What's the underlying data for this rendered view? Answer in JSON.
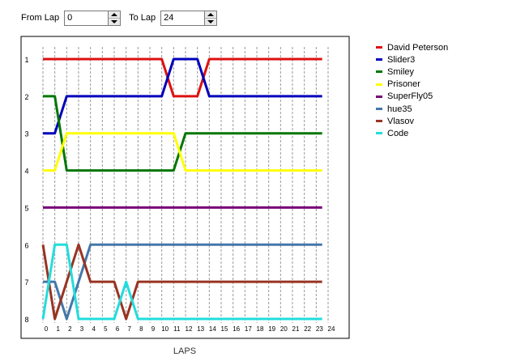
{
  "controls": {
    "from_label": "From Lap",
    "from_value": "0",
    "to_label": "To Lap",
    "to_value": "24"
  },
  "chart_data": {
    "type": "line",
    "title": "",
    "xlabel": "LAPS",
    "ylabel": "",
    "x_ticks": [
      0,
      1,
      2,
      3,
      4,
      5,
      6,
      7,
      8,
      9,
      10,
      11,
      12,
      13,
      14,
      15,
      16,
      17,
      18,
      19,
      20,
      21,
      22,
      23,
      24
    ],
    "y_ticks": [
      1,
      2,
      3,
      4,
      5,
      6,
      7,
      8
    ],
    "xlim": [
      0,
      24
    ],
    "ylim": [
      1,
      8
    ],
    "y_inverted": true,
    "grid": "vertical-dashed",
    "legend_position": "right",
    "series": [
      {
        "name": "David Peterson",
        "color": "#dd1111",
        "x": [
          0,
          10,
          11,
          13,
          14,
          23.5
        ],
        "y": [
          1,
          1,
          2,
          2,
          1,
          1
        ]
      },
      {
        "name": "Slider3",
        "color": "#0000bb",
        "x": [
          0,
          1,
          2,
          10,
          11,
          13,
          14,
          23.5
        ],
        "y": [
          3,
          3,
          2,
          2,
          1,
          1,
          2,
          2
        ]
      },
      {
        "name": "Smiley",
        "color": "#007700",
        "x": [
          0,
          1,
          2,
          11,
          12,
          23.5
        ],
        "y": [
          2,
          2,
          4,
          4,
          3,
          3
        ]
      },
      {
        "name": "Prisoner",
        "color": "#ffff00",
        "x": [
          0,
          1,
          2,
          11,
          12,
          23.5
        ],
        "y": [
          4,
          4,
          3,
          3,
          4,
          4
        ]
      },
      {
        "name": "SuperFly05",
        "color": "#770077",
        "x": [
          0,
          23.5
        ],
        "y": [
          5,
          5
        ]
      },
      {
        "name": "hue35",
        "color": "#4477aa",
        "x": [
          0,
          1,
          2,
          3,
          4,
          23.5
        ],
        "y": [
          7,
          7,
          8,
          7,
          6,
          6
        ]
      },
      {
        "name": "Vlasov",
        "color": "#993322",
        "x": [
          0,
          1,
          2,
          3,
          4,
          6,
          7,
          8,
          23.5
        ],
        "y": [
          6,
          8,
          7,
          6,
          7,
          7,
          8,
          7,
          7
        ]
      },
      {
        "name": "Code",
        "color": "#22dddd",
        "x": [
          0,
          1,
          2,
          3,
          6,
          7,
          8,
          23.5
        ],
        "y": [
          8,
          6,
          6,
          8,
          8,
          7,
          8,
          8
        ]
      }
    ]
  }
}
